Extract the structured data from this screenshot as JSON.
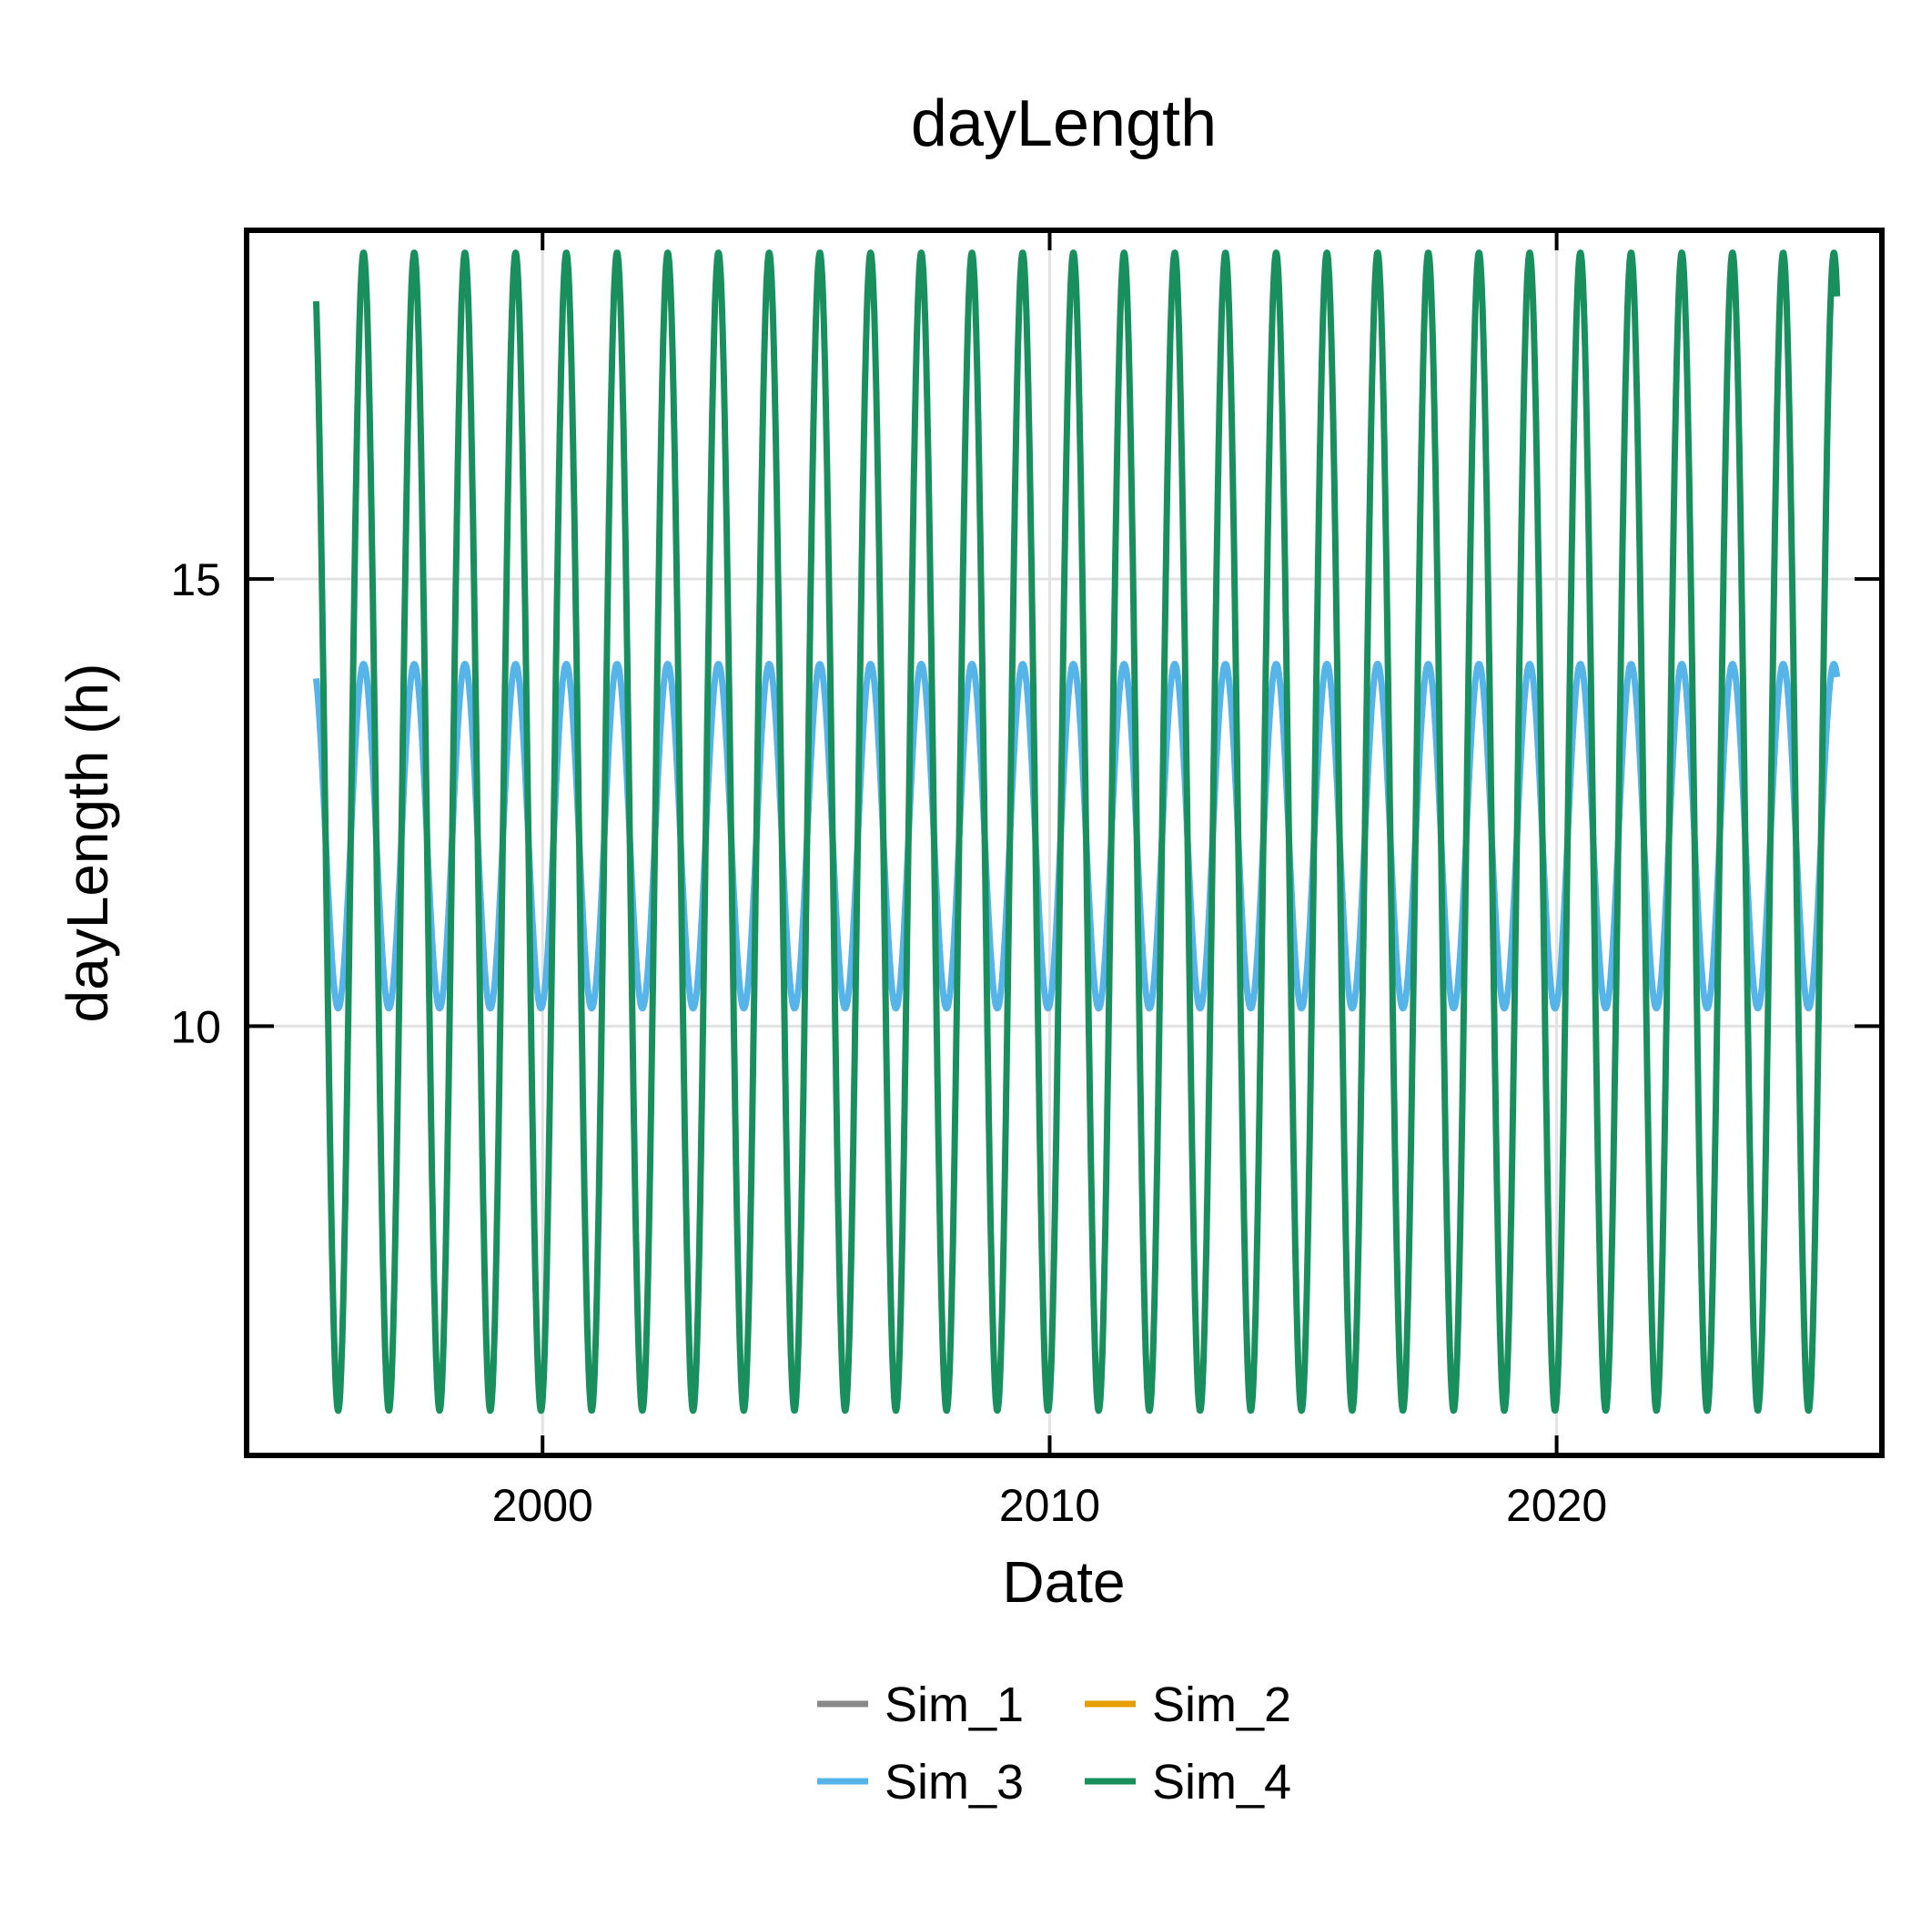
{
  "chart_data": {
    "type": "line",
    "title": "dayLength",
    "xlabel": "Date",
    "ylabel": "dayLength (h)",
    "xlim": [
      "1994-03-01",
      "2026-06-01"
    ],
    "ylim": [
      5.2,
      18.9
    ],
    "xticks": [
      {
        "date": "2000-01-01",
        "label": "2000"
      },
      {
        "date": "2010-01-01",
        "label": "2010"
      },
      {
        "date": "2020-01-01",
        "label": "2020"
      }
    ],
    "yticks": [
      {
        "value": 10,
        "label": "10"
      },
      {
        "value": 15,
        "label": "15"
      }
    ],
    "grid": true,
    "legend_placement": "bottom-center",
    "legend_ncols": 2,
    "x_start": "1995-07-15",
    "x_end": "2025-07-15",
    "peak_month_day": "06-21",
    "series": [
      {
        "name": "Sim_1",
        "color": "#888888",
        "min": 10.2,
        "max": 14.05,
        "visible": false
      },
      {
        "name": "Sim_2",
        "color": "#E69F00",
        "min": 10.2,
        "max": 14.05,
        "visible": false
      },
      {
        "name": "Sim_3",
        "color": "#56B4E9",
        "min": 10.2,
        "max": 14.05,
        "visible": true
      },
      {
        "name": "Sim_4",
        "color": "#1A8F5E",
        "min": 5.7,
        "max": 18.65,
        "visible": true
      }
    ]
  }
}
